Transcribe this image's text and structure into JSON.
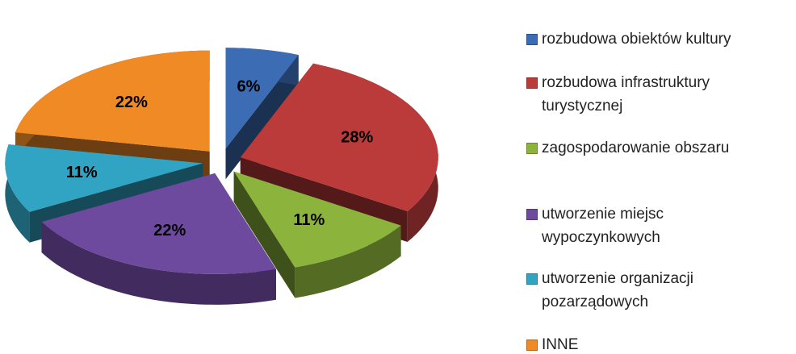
{
  "chart_data": {
    "type": "pie3d",
    "categories": [
      "rozbudowa obiektów kultury",
      "rozbudowa infrastruktury turystycznej",
      "zagospodarowanie obszaru",
      "utworzenie miejsc wypoczynkowych",
      "utworzenie organizacji pozarządowych",
      "INNE"
    ],
    "values": [
      6,
      28,
      11,
      22,
      11,
      22
    ],
    "value_labels": [
      "6%",
      "28%",
      "11%",
      "22%",
      "11%",
      "22%"
    ],
    "colors": [
      "#3b6cb4",
      "#bb3a3a",
      "#8cb33c",
      "#6e4a9f",
      "#31a4c3",
      "#f08a25"
    ],
    "legend": "right"
  }
}
